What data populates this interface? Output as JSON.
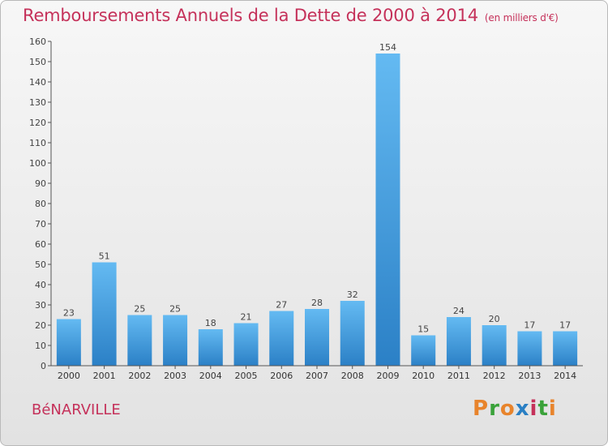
{
  "header": {
    "title": "Remboursements Annuels de la Dette de 2000 à 2014",
    "unit": "(en milliers d'€)"
  },
  "footer": {
    "commune": "BéNARVILLE",
    "logo_text": "Proxiti"
  },
  "colors": {
    "title": "#c5315a",
    "bar_light": "#62b8f0",
    "bar_dark": "#2a7fc4",
    "logo": [
      "#e8842c",
      "#3aa23a",
      "#e8842c",
      "#2a7fc4",
      "#c5315a",
      "#3aa23a",
      "#e8842c"
    ]
  },
  "chart_data": {
    "type": "bar",
    "title": "Remboursements Annuels de la Dette de 2000 à 2014",
    "categories": [
      "2000",
      "2001",
      "2002",
      "2003",
      "2004",
      "2005",
      "2006",
      "2007",
      "2008",
      "2009",
      "2010",
      "2011",
      "2012",
      "2013",
      "2014"
    ],
    "values": [
      23,
      51,
      25,
      25,
      18,
      21,
      27,
      28,
      32,
      154,
      15,
      24,
      20,
      17,
      17
    ],
    "ylim": [
      0,
      160
    ],
    "yticks": [
      0,
      10,
      20,
      30,
      40,
      50,
      60,
      70,
      80,
      90,
      100,
      110,
      120,
      130,
      140,
      150,
      160
    ],
    "grid": false,
    "data_labels": true
  }
}
